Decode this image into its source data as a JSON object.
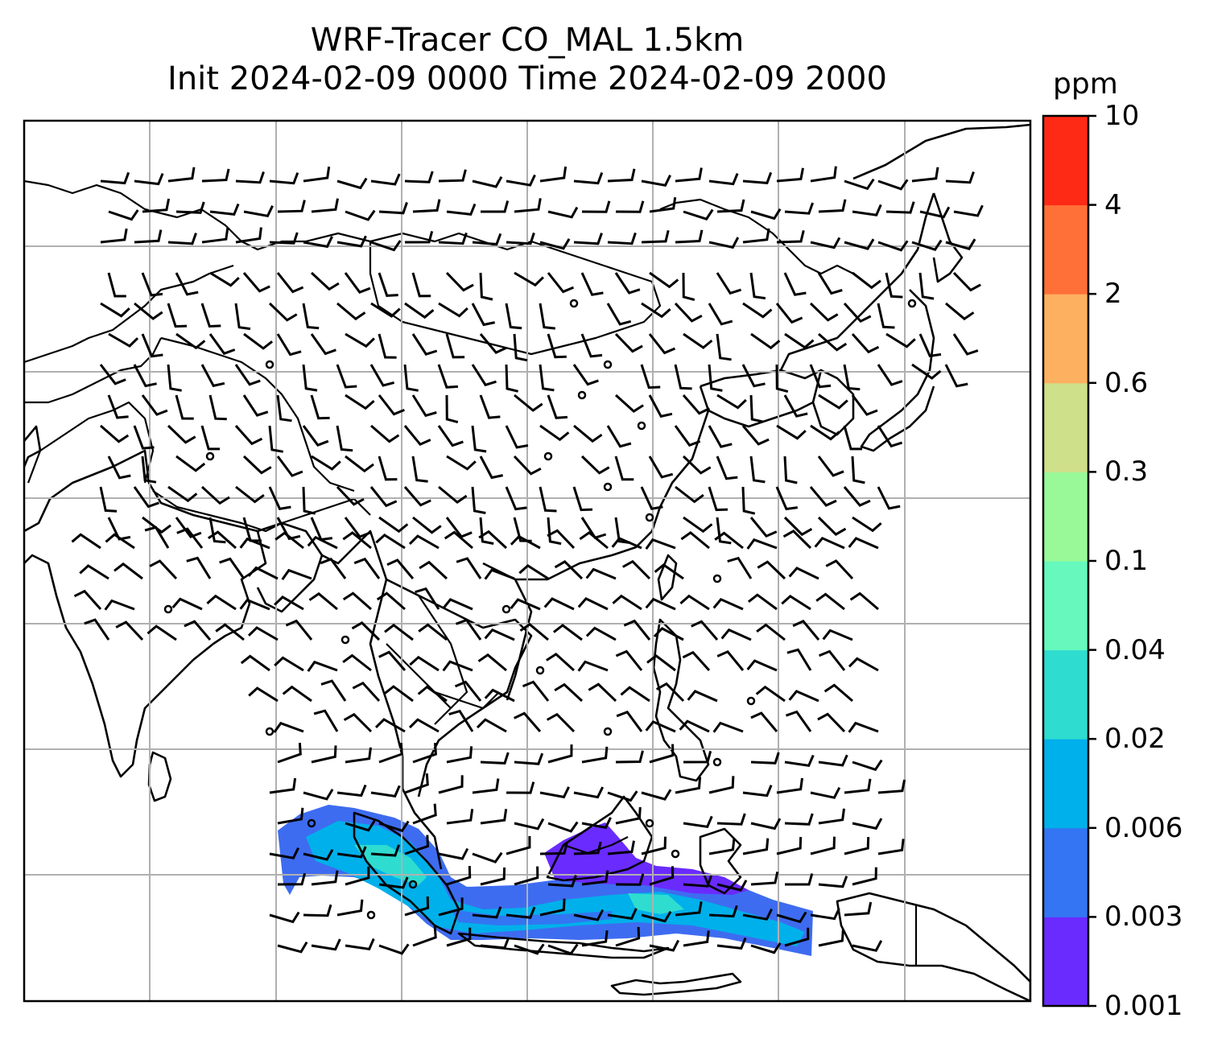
{
  "title": {
    "line1": "WRF-Tracer CO_MAL 1.5km",
    "line2": "Init 2024-02-09 0000 Time 2024-02-09 2000"
  },
  "colorbar": {
    "unit": "ppm",
    "ticks": [
      "0.001",
      "0.003",
      "0.006",
      "0.02",
      "0.04",
      "0.1",
      "0.3",
      "0.6",
      "2",
      "4",
      "10"
    ],
    "colors": [
      "#6a2bff",
      "#3375f2",
      "#00b0ea",
      "#2fdcd0",
      "#66f8bd",
      "#99f998",
      "#cfe08a",
      "#fcb060",
      "#ff7039",
      "#ff2a16"
    ]
  },
  "map": {
    "gridlines": true,
    "coast_color": "#000000",
    "grid_color": "#b0b0b0"
  }
}
